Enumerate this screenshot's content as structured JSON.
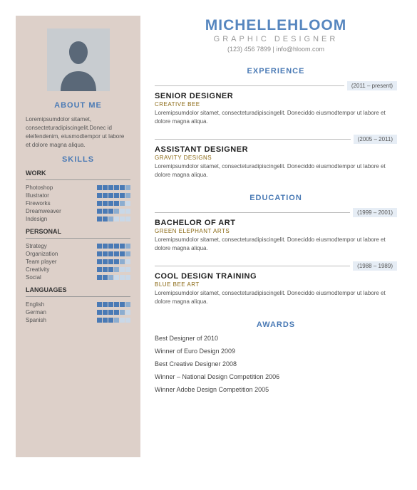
{
  "colors": {
    "accent": "#4a7ab5",
    "name": "#5686bf",
    "sidebar_bg": "#ddd0c9",
    "date_bg": "#e6edf5",
    "sub_brown": "#8b6914",
    "box_full": "#4a7ab5",
    "box_mid": "#8cadd0",
    "box_low": "#c9d8e8"
  },
  "header": {
    "name": "MICHELLEHLOOM",
    "title": "GRAPHIC DESIGNER",
    "contact": "(123) 456 7899 | info@hloom.com"
  },
  "sidebar": {
    "about_heading": "ABOUT ME",
    "about_text": "Loremipsumdolor sitamet, consecteturadipiscingelit.Donec id eleifendenim, eiusmodtempor ut labore et dolore magna aliqua.",
    "skills_heading": "SKILLS",
    "groups": [
      {
        "label": "WORK",
        "items": [
          {
            "name": "Photoshop",
            "level": 6
          },
          {
            "name": "Illustrator",
            "level": 6
          },
          {
            "name": "Fireworks",
            "level": 5
          },
          {
            "name": "Dreamweaver",
            "level": 4
          },
          {
            "name": "Indesign",
            "level": 3
          }
        ]
      },
      {
        "label": "PERSONAL",
        "items": [
          {
            "name": "Strategy",
            "level": 6
          },
          {
            "name": "Organization",
            "level": 6
          },
          {
            "name": "Team player",
            "level": 5
          },
          {
            "name": "Creativity",
            "level": 4
          },
          {
            "name": "Social",
            "level": 3
          }
        ]
      },
      {
        "label": "LANGUAGES",
        "items": [
          {
            "name": "English",
            "level": 6
          },
          {
            "name": "German",
            "level": 5
          },
          {
            "name": "Spanish",
            "level": 4
          }
        ]
      }
    ]
  },
  "sections": {
    "experience": {
      "heading": "EXPERIENCE",
      "entries": [
        {
          "title": "SENIOR DESIGNER",
          "sub": "CREATIVE BEE",
          "date": "(2011 – present)",
          "desc": "Loremipsumdolor sitamet, consecteturadipiscingelit. Doneciddo eiusmodtempor ut labore et dolore magna aliqua."
        },
        {
          "title": "ASSISTANT DESIGNER",
          "sub": "GRAVITY DESIGNS",
          "date": "(2005 – 2011)",
          "desc": "Loremipsumdolor sitamet, consecteturadipiscingelit. Doneciddo eiusmodtempor ut labore et dolore magna aliqua."
        }
      ]
    },
    "education": {
      "heading": "EDUCATION",
      "entries": [
        {
          "title": "BACHELOR OF ART",
          "sub": "GREEN ELEPHANT ARTS",
          "date": "(1999 – 2001)",
          "desc": "Loremipsumdolor sitamet, consecteturadipiscingelit. Doneciddo eiusmodtempor ut labore et dolore magna aliqua."
        },
        {
          "title": "COOL DESIGN TRAINING",
          "sub": "BLUE BEE ART",
          "date": "(1988 – 1989)",
          "desc": "Loremipsumdolor sitamet, consecteturadipiscingelit. Doneciddo eiusmodtempor ut labore et dolore magna aliqua."
        }
      ]
    },
    "awards": {
      "heading": "AWARDS",
      "items": [
        "Best Designer of 2010",
        "Winner of Euro Design 2009",
        "Best Creative Designer 2008",
        "Winner – National Design Competition 2006",
        "Winner Adobe Design Competition 2005"
      ]
    }
  }
}
